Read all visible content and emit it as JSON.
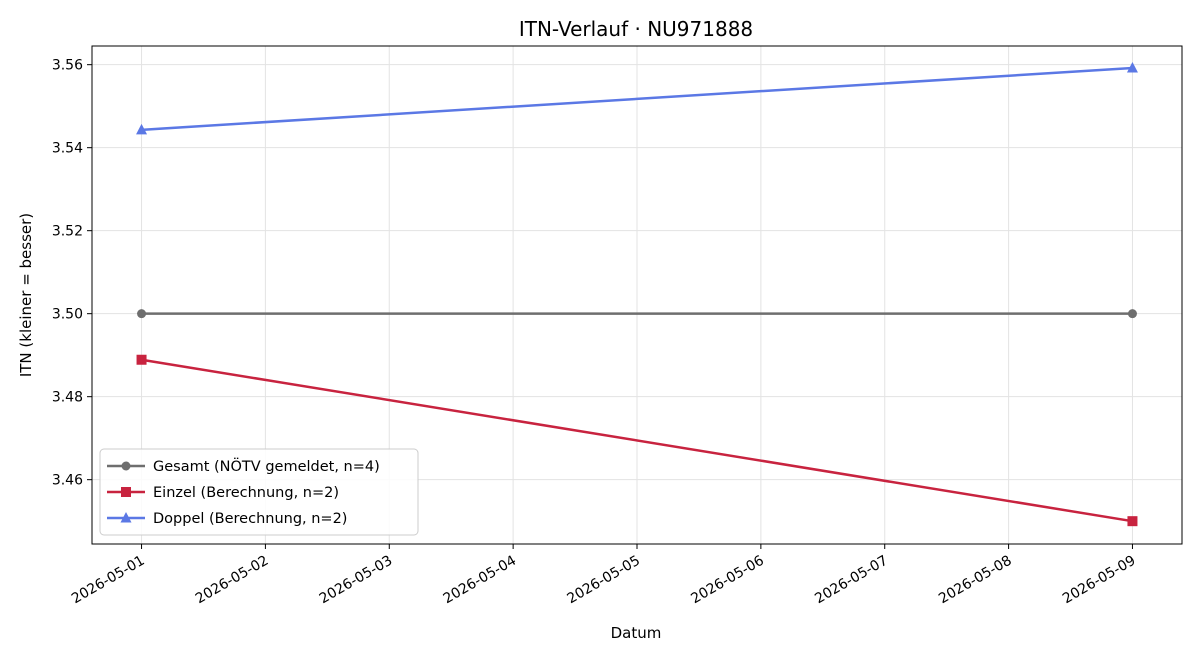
{
  "chart_data": {
    "type": "line",
    "title": "ITN-Verlauf · NU971888",
    "xlabel": "Datum",
    "ylabel": "ITN  (kleiner = besser)",
    "x_ticks": [
      "2026-05-01",
      "2026-05-02",
      "2026-05-03",
      "2026-05-04",
      "2026-05-05",
      "2026-05-06",
      "2026-05-07",
      "2026-05-08",
      "2026-05-09"
    ],
    "y_ticks": [
      "3.46",
      "3.48",
      "3.50",
      "3.52",
      "3.54",
      "3.56"
    ],
    "xlim": [
      "2026-04-30T14:24",
      "2026-05-09T09:36"
    ],
    "ylim": [
      3.4445,
      3.5645
    ],
    "grid": true,
    "legend_position": "lower-left",
    "series": [
      {
        "name": "Gesamt (NÖTV gemeldet, n=4)",
        "color": "#6e6e6e",
        "marker": "circle",
        "x": [
          "2026-05-01",
          "2026-05-09"
        ],
        "y": [
          3.5,
          3.5
        ]
      },
      {
        "name": "Einzel (Berechnung, n=2)",
        "color": "#c8233f",
        "marker": "square",
        "x": [
          "2026-05-01",
          "2026-05-09"
        ],
        "y": [
          3.4889,
          3.45
        ]
      },
      {
        "name": "Doppel (Berechnung, n=2)",
        "color": "#5b78e5",
        "marker": "triangle",
        "x": [
          "2026-05-01",
          "2026-05-09"
        ],
        "y": [
          3.5443,
          3.5592
        ]
      }
    ]
  }
}
